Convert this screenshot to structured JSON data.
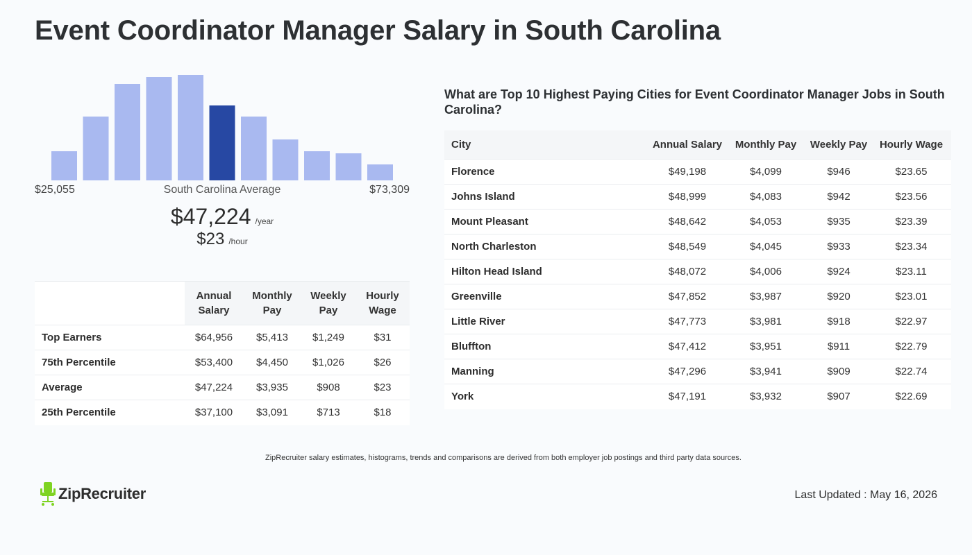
{
  "title": "Event Coordinator Manager Salary in South Carolina",
  "histogram": {
    "bars": [
      0.27,
      0.6,
      0.9,
      0.97,
      0.99,
      0.7,
      0.6,
      0.38,
      0.27,
      0.25,
      0.15
    ],
    "highlight_index": 5,
    "colors": {
      "bar": "#a9b9f0",
      "highlight": "#2748a3"
    },
    "min_label": "$25,055",
    "mid_label": "South Carolina Average",
    "max_label": "$73,309"
  },
  "average": {
    "annual": "$47,224",
    "annual_unit": "/year",
    "hourly": "$23",
    "hourly_unit": "/hour"
  },
  "percentile_table": {
    "headers": [
      "Annual Salary",
      "Monthly Pay",
      "Weekly Pay",
      "Hourly Wage"
    ],
    "rows": [
      {
        "label": "Top Earners",
        "annual": "$64,956",
        "monthly": "$5,413",
        "weekly": "$1,249",
        "hourly": "$31"
      },
      {
        "label": "75th Percentile",
        "annual": "$53,400",
        "monthly": "$4,450",
        "weekly": "$1,026",
        "hourly": "$26"
      },
      {
        "label": "Average",
        "annual": "$47,224",
        "monthly": "$3,935",
        "weekly": "$908",
        "hourly": "$23"
      },
      {
        "label": "25th Percentile",
        "annual": "$37,100",
        "monthly": "$3,091",
        "weekly": "$713",
        "hourly": "$18"
      }
    ]
  },
  "cities": {
    "heading": "What are Top 10 Highest Paying Cities for Event Coordinator Manager Jobs in South Carolina?",
    "headers": [
      "City",
      "Annual Salary",
      "Monthly Pay",
      "Weekly Pay",
      "Hourly Wage"
    ],
    "rows": [
      {
        "city": "Florence",
        "annual": "$49,198",
        "monthly": "$4,099",
        "weekly": "$946",
        "hourly": "$23.65"
      },
      {
        "city": "Johns Island",
        "annual": "$48,999",
        "monthly": "$4,083",
        "weekly": "$942",
        "hourly": "$23.56"
      },
      {
        "city": "Mount Pleasant",
        "annual": "$48,642",
        "monthly": "$4,053",
        "weekly": "$935",
        "hourly": "$23.39"
      },
      {
        "city": "North Charleston",
        "annual": "$48,549",
        "monthly": "$4,045",
        "weekly": "$933",
        "hourly": "$23.34"
      },
      {
        "city": "Hilton Head Island",
        "annual": "$48,072",
        "monthly": "$4,006",
        "weekly": "$924",
        "hourly": "$23.11"
      },
      {
        "city": "Greenville",
        "annual": "$47,852",
        "monthly": "$3,987",
        "weekly": "$920",
        "hourly": "$23.01"
      },
      {
        "city": "Little River",
        "annual": "$47,773",
        "monthly": "$3,981",
        "weekly": "$918",
        "hourly": "$22.97"
      },
      {
        "city": "Bluffton",
        "annual": "$47,412",
        "monthly": "$3,951",
        "weekly": "$911",
        "hourly": "$22.79"
      },
      {
        "city": "Manning",
        "annual": "$47,296",
        "monthly": "$3,941",
        "weekly": "$909",
        "hourly": "$22.74"
      },
      {
        "city": "York",
        "annual": "$47,191",
        "monthly": "$3,932",
        "weekly": "$907",
        "hourly": "$22.69"
      }
    ]
  },
  "footnote": "ZipRecruiter salary estimates, histograms, trends and comparisons are derived from both employer job postings and third party data sources.",
  "logo": {
    "name": "ZipRecruiter",
    "icon": "zip-chair-icon",
    "color": "#7ed321"
  },
  "last_updated": "Last Updated : May 16, 2026"
}
